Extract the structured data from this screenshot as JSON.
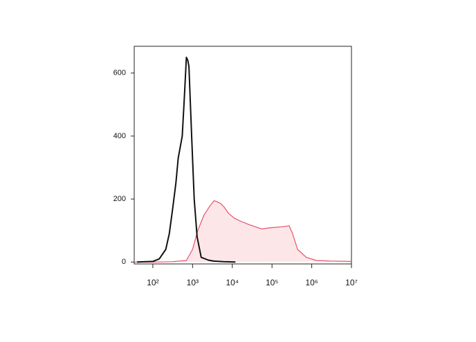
{
  "chart_data": {
    "type": "area",
    "xscale": "log",
    "xlim": [
      34,
      10000000
    ],
    "xticks": [
      {
        "value": 100,
        "label": "10²"
      },
      {
        "value": 1000,
        "label": "10³"
      },
      {
        "value": 10000,
        "label": "10⁴"
      },
      {
        "value": 100000,
        "label": "10⁵"
      },
      {
        "value": 1000000,
        "label": "10⁶"
      },
      {
        "value": 10000000,
        "label": "10⁷"
      }
    ],
    "ylim": [
      -6,
      685
    ],
    "yticks": [
      0,
      200,
      400,
      600
    ],
    "series": [
      {
        "color": "#e8506a",
        "fill": "#fde6e8",
        "x": [
          35,
          100,
          300,
          700,
          1000,
          1350,
          1950,
          2800,
          3500,
          4400,
          5200,
          6200,
          8000,
          11000,
          16000,
          25000,
          38000,
          55000,
          80000,
          120000,
          180000,
          270000,
          330000,
          440000,
          730000,
          1300000,
          3000000,
          10000000
        ],
        "values": [
          0,
          0,
          1,
          5,
          40,
          100,
          150,
          180,
          195,
          190,
          185,
          175,
          155,
          140,
          130,
          120,
          112,
          105,
          108,
          110,
          112,
          115,
          90,
          40,
          15,
          5,
          3,
          2
        ]
      },
      {
        "color": "#111111",
        "fill": "none",
        "x": [
          40,
          100,
          145,
          212,
          260,
          316,
          380,
          436,
          550,
          620,
          700,
          760,
          810,
          950,
          1100,
          1300,
          1650,
          2500,
          3400,
          6000,
          12000
        ],
        "values": [
          0,
          2,
          10,
          40,
          90,
          170,
          250,
          330,
          400,
          520,
          650,
          640,
          620,
          400,
          200,
          80,
          15,
          6,
          3,
          1,
          0
        ]
      }
    ]
  }
}
